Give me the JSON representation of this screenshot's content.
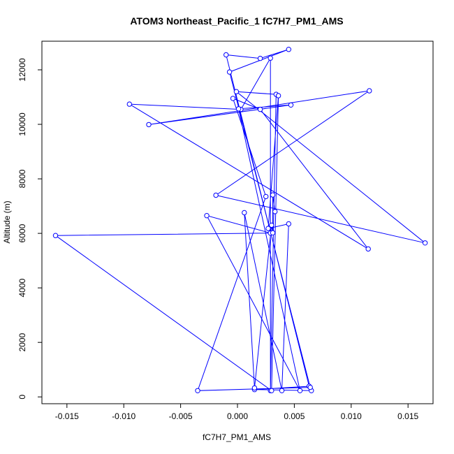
{
  "chart_data": {
    "type": "line",
    "title": "ATOM3 Northeast_Pacific_1 fC7H7_PM1_AMS",
    "xlabel": "fC7H7_PM1_AMS",
    "ylabel": "Altitude (m)",
    "xlim": [
      -0.0172,
      0.0172
    ],
    "ylim": [
      -250,
      13050
    ],
    "x_ticks": [
      -0.015,
      -0.01,
      -0.005,
      0.0,
      0.005,
      0.01,
      0.015
    ],
    "x_tick_labels": [
      "-0.015",
      "-0.010",
      "-0.005",
      "0.000",
      "0.005",
      "0.010",
      "0.015"
    ],
    "y_ticks": [
      0,
      2000,
      4000,
      6000,
      8000,
      10000,
      12000
    ],
    "y_tick_labels": [
      "0",
      "2000",
      "4000",
      "6000",
      "8000",
      "10000",
      "12000"
    ],
    "grid": false,
    "markers": "open-circle",
    "series_color": "#0000ff",
    "series": [
      {
        "x": [
          0.0065,
          0.0015,
          0.0063,
          -0.001,
          0.002,
          0.0045,
          -0.0007,
          0.0064,
          -0.0035,
          0.0025,
          -0.0004,
          0.002,
          0.0115,
          -0.0095,
          0.0003,
          0.0029,
          0.0029,
          0.0034,
          -0.0001,
          0.0165,
          -0.0019,
          0.0116,
          -0.0078,
          0.0047,
          0.0001,
          0.0055,
          -0.0027,
          0.0029,
          -0.016,
          0.003,
          0.0036,
          0.0027,
          0.0045,
          0.0039,
          0.0006,
          0.0015,
          0.003,
          0.0031,
          0.0031,
          0.0033
        ],
        "y": [
          230,
          270,
          390,
          12550,
          12420,
          12750,
          11920,
          350,
          230,
          7350,
          10950,
          10550,
          5430,
          10740,
          10550,
          12430,
          230,
          11100,
          11200,
          5650,
          7400,
          11230,
          9990,
          10710,
          10570,
          230,
          6650,
          6010,
          5920,
          230,
          11050,
          6180,
          6350,
          230,
          6760,
          330,
          6300,
          6020,
          7410,
          6800
        ]
      }
    ]
  }
}
